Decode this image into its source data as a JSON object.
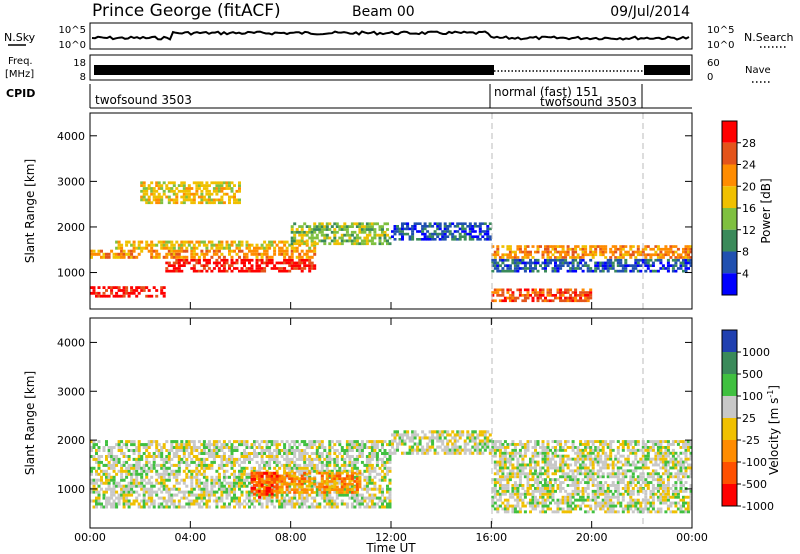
{
  "header": {
    "station": "Prince George (fitACF)",
    "beam": "Beam 00",
    "date": "09/Jul/2014"
  },
  "strip_labels": {
    "nsky": "N.Sky",
    "nsearch": "N.Search",
    "freq_top": "Freq.",
    "freq_unit": "[MHz]",
    "nave": "Nave",
    "cpid": "CPID",
    "nsky_ticks": [
      "10^5",
      "10^0"
    ],
    "freq_ticks": [
      "18",
      "8"
    ],
    "nave_ticks": [
      "60",
      "0"
    ]
  },
  "cpid_labels": [
    "twofsound 3503",
    "normal (fast) 151",
    "twofsound 3503"
  ],
  "chart_data": [
    {
      "type": "heatmap",
      "panel": "power",
      "xlabel": "Time UT",
      "ylabel": "Slant Range [km]",
      "x_range_hours": [
        0,
        24
      ],
      "ylim": [
        200,
        4500
      ],
      "y_ticks": [
        "1000",
        "2000",
        "3000",
        "4000"
      ],
      "colorbar_label": "Power [dB]",
      "colorbar_ticks": [
        "28",
        "24",
        "20",
        "16",
        "12",
        "8",
        "4"
      ],
      "colors": [
        "#ff0000",
        "#e4541b",
        "#ff8c00",
        "#f0c000",
        "#7fc040",
        "#3a8a5a",
        "#2050b0",
        "#0000ff"
      ],
      "bands": [
        {
          "t0": 0.0,
          "t1": 3.0,
          "r0": 450,
          "r1": 700,
          "level": 0
        },
        {
          "t0": 3.0,
          "t1": 9.0,
          "r0": 1000,
          "r1": 1300,
          "level": 0
        },
        {
          "t0": 0.0,
          "t1": 9.0,
          "r0": 1300,
          "r1": 1500,
          "level": 2
        },
        {
          "t0": 1.0,
          "t1": 9.0,
          "r0": 1500,
          "r1": 1700,
          "level": 3
        },
        {
          "t0": 8.0,
          "t1": 12.0,
          "r0": 1600,
          "r1": 2100,
          "level": 4
        },
        {
          "t0": 2.0,
          "t1": 6.0,
          "r0": 2500,
          "r1": 3000,
          "level": 3
        },
        {
          "t0": 12.0,
          "t1": 16.0,
          "r0": 1700,
          "r1": 2100,
          "level": 6
        },
        {
          "t0": 16.0,
          "t1": 20.0,
          "r0": 350,
          "r1": 650,
          "level": 1
        },
        {
          "t0": 16.0,
          "t1": 24.0,
          "r0": 1300,
          "r1": 1600,
          "level": 2
        },
        {
          "t0": 16.0,
          "t1": 24.0,
          "r0": 1000,
          "r1": 1300,
          "level": 6
        }
      ]
    },
    {
      "type": "heatmap",
      "panel": "velocity",
      "xlabel": "Time UT",
      "ylabel": "Slant Range [km]",
      "x_range_hours": [
        0,
        24
      ],
      "x_ticks": [
        "00:00",
        "04:00",
        "08:00",
        "12:00",
        "16:00",
        "20:00",
        "00:00"
      ],
      "ylim": [
        200,
        4500
      ],
      "y_ticks": [
        "1000",
        "2000",
        "3000",
        "4000"
      ],
      "colorbar_label": "Velocity [m s",
      "colorbar_label_sup": "-1",
      "colorbar_label_close": "]",
      "colorbar_ticks": [
        "1000",
        "500",
        "100",
        "25",
        "-25",
        "-100",
        "-500",
        "-1000"
      ],
      "colors": [
        "#2040b0",
        "#3a8a5a",
        "#40c040",
        "#c8c8c8",
        "#f0c000",
        "#ff8c00",
        "#ff5000",
        "#ff0000"
      ],
      "bands": [
        {
          "t0": 0.0,
          "t1": 12.0,
          "r0": 600,
          "r1": 2000,
          "level": 3
        },
        {
          "t0": 6.5,
          "t1": 10.8,
          "r0": 900,
          "r1": 1350,
          "level": 5
        },
        {
          "t0": 6.4,
          "t1": 7.5,
          "r0": 800,
          "r1": 1350,
          "level": 6
        },
        {
          "t0": 16.0,
          "t1": 24.0,
          "r0": 500,
          "r1": 2000,
          "level": 3
        },
        {
          "t0": 12.0,
          "t1": 16.0,
          "r0": 1700,
          "r1": 2200,
          "level": 3
        }
      ]
    }
  ]
}
